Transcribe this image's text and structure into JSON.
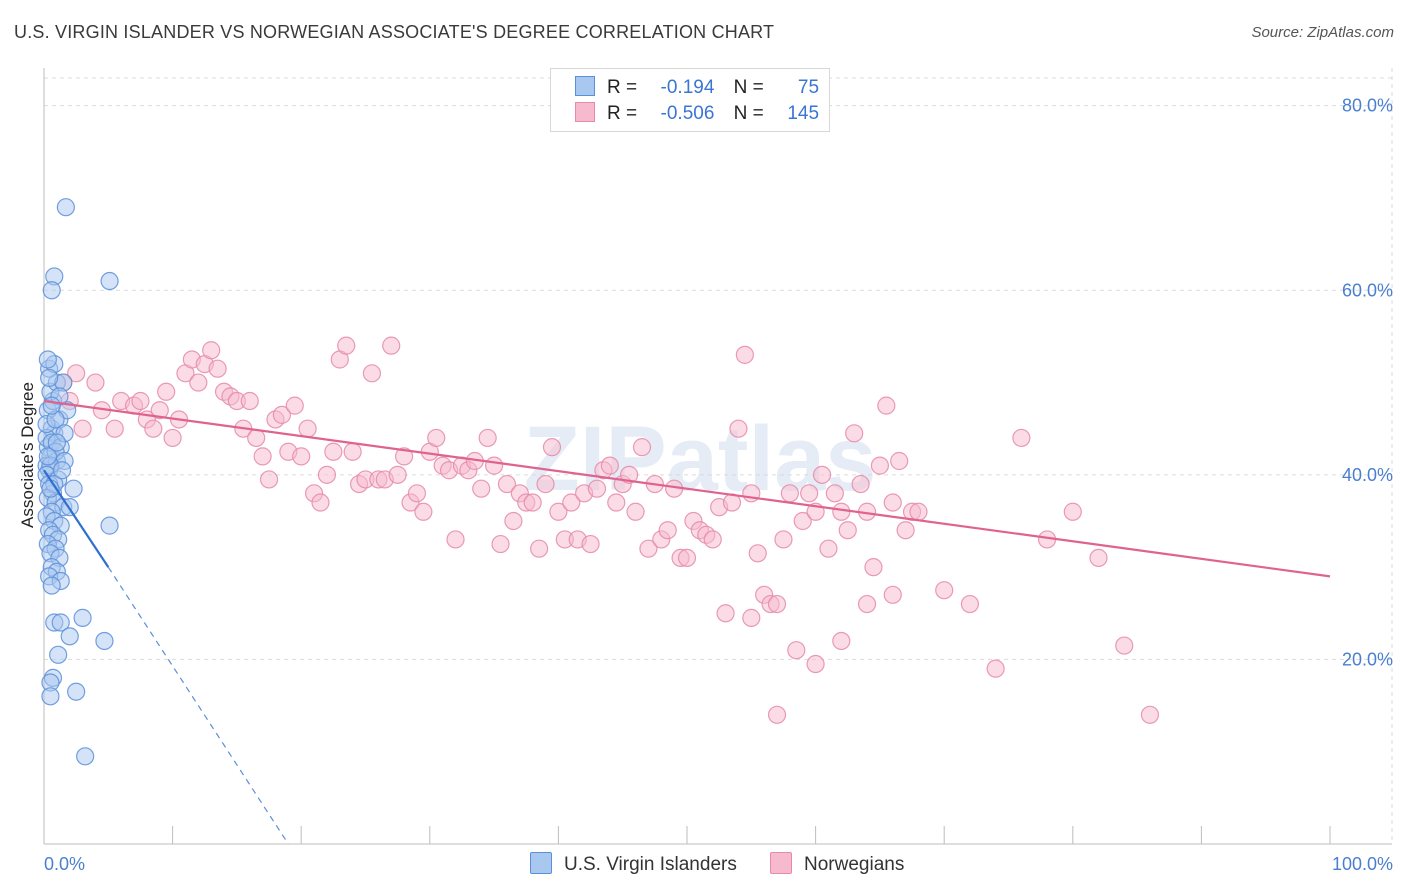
{
  "title": "U.S. VIRGIN ISLANDER VS NORWEGIAN ASSOCIATE'S DEGREE CORRELATION CHART",
  "source": "Source: ZipAtlas.com",
  "watermark": "ZIPatlas",
  "legend": {
    "r_label": "R =",
    "n_label": "N =",
    "rows": [
      {
        "name": "U.S. Virgin Islanders",
        "r": "-0.194",
        "n": "75",
        "color": "#a9c8f0",
        "stroke": "#5b8fd8"
      },
      {
        "name": "Norwegians",
        "r": "-0.506",
        "n": "145",
        "color": "#f7b9cd",
        "stroke": "#e58aa8"
      }
    ]
  },
  "chart_data": {
    "type": "scatter",
    "title": "U.S. VIRGIN ISLANDER VS NORWEGIAN ASSOCIATE'S DEGREE CORRELATION CHART",
    "xlabel": "",
    "ylabel": "Associate's Degree",
    "xlim": [
      0,
      100
    ],
    "ylim": [
      0,
      83
    ],
    "x_tick_labels": [
      "0.0%",
      "100.0%"
    ],
    "y_ticks": [
      20,
      40,
      60,
      80
    ],
    "y_tick_labels": [
      "20.0%",
      "40.0%",
      "60.0%",
      "80.0%"
    ],
    "grid": true,
    "legend_position": "top-center",
    "series": [
      {
        "name": "U.S. Virgin Islanders",
        "color": "#a9c8f0",
        "stroke": "#5b8fd8",
        "trend": {
          "x": [
            0,
            5
          ],
          "y": [
            40.5,
            30.0
          ],
          "dashed_extension_to": [
            19,
            0
          ]
        },
        "points": [
          [
            0.3,
            43
          ],
          [
            0.5,
            42
          ],
          [
            0.8,
            44.5
          ],
          [
            0.4,
            40.5
          ],
          [
            0.2,
            41
          ],
          [
            1.0,
            41.5
          ],
          [
            0.6,
            45
          ],
          [
            1.2,
            46
          ],
          [
            0.3,
            47
          ],
          [
            0.7,
            48
          ],
          [
            0.5,
            49
          ],
          [
            1.0,
            50
          ],
          [
            0.4,
            51.5
          ],
          [
            0.8,
            52
          ],
          [
            0.3,
            52.5
          ],
          [
            1.5,
            50
          ],
          [
            1.8,
            47
          ],
          [
            0.2,
            44
          ],
          [
            0.6,
            43.5
          ],
          [
            1.3,
            43
          ],
          [
            0.9,
            42.5
          ],
          [
            1.6,
            41.5
          ],
          [
            0.5,
            41
          ],
          [
            0.2,
            40
          ],
          [
            1.1,
            39.5
          ],
          [
            0.4,
            39
          ],
          [
            0.7,
            38
          ],
          [
            2.3,
            38.5
          ],
          [
            0.3,
            37.5
          ],
          [
            0.9,
            37
          ],
          [
            1.5,
            36.5
          ],
          [
            2.0,
            36.5
          ],
          [
            0.6,
            36
          ],
          [
            0.2,
            35.5
          ],
          [
            0.8,
            35
          ],
          [
            1.3,
            34.5
          ],
          [
            0.4,
            34
          ],
          [
            0.7,
            33.5
          ],
          [
            1.1,
            33
          ],
          [
            0.3,
            32.5
          ],
          [
            0.9,
            32
          ],
          [
            0.5,
            31.5
          ],
          [
            1.2,
            31
          ],
          [
            0.6,
            30
          ],
          [
            1.0,
            29.5
          ],
          [
            0.4,
            29
          ],
          [
            1.3,
            28.5
          ],
          [
            0.6,
            28
          ],
          [
            0.8,
            61.5
          ],
          [
            0.6,
            60
          ],
          [
            1.7,
            69
          ],
          [
            5.1,
            61
          ],
          [
            5.1,
            34.5
          ],
          [
            0.8,
            24
          ],
          [
            1.3,
            24
          ],
          [
            3.0,
            24.5
          ],
          [
            2.0,
            22.5
          ],
          [
            4.7,
            22
          ],
          [
            1.1,
            20.5
          ],
          [
            0.7,
            18
          ],
          [
            0.5,
            17.5
          ],
          [
            2.5,
            16.5
          ],
          [
            0.5,
            16
          ],
          [
            3.2,
            9.5
          ],
          [
            0.2,
            45.5
          ],
          [
            0.9,
            46
          ],
          [
            1.2,
            48.5
          ],
          [
            0.4,
            50.5
          ],
          [
            1.6,
            44.5
          ],
          [
            0.8,
            39
          ],
          [
            1.4,
            40.5
          ],
          [
            0.3,
            42
          ],
          [
            1.0,
            43.5
          ],
          [
            0.6,
            47.5
          ],
          [
            0.5,
            38.5
          ]
        ]
      },
      {
        "name": "Norwegians",
        "color": "#f7b9cd",
        "stroke": "#e58aa8",
        "trend": {
          "x": [
            0,
            100
          ],
          "y": [
            48.0,
            29.0
          ]
        },
        "points": [
          [
            2,
            48
          ],
          [
            2.5,
            51
          ],
          [
            1.5,
            50
          ],
          [
            4,
            50
          ],
          [
            3,
            45
          ],
          [
            4.5,
            47
          ],
          [
            5.5,
            45
          ],
          [
            6,
            48
          ],
          [
            7,
            47.5
          ],
          [
            7.5,
            48
          ],
          [
            8,
            46
          ],
          [
            8.5,
            45
          ],
          [
            9,
            47
          ],
          [
            9.5,
            49
          ],
          [
            10,
            44
          ],
          [
            10.5,
            46
          ],
          [
            11,
            51
          ],
          [
            11.5,
            52.5
          ],
          [
            12,
            50
          ],
          [
            12.5,
            52
          ],
          [
            13,
            53.5
          ],
          [
            13.5,
            51.5
          ],
          [
            14,
            49
          ],
          [
            14.5,
            48.5
          ],
          [
            15,
            48
          ],
          [
            15.5,
            45
          ],
          [
            16,
            48
          ],
          [
            16.5,
            44
          ],
          [
            17,
            42
          ],
          [
            17.5,
            39.5
          ],
          [
            18,
            46
          ],
          [
            18.5,
            46.5
          ],
          [
            19,
            42.5
          ],
          [
            19.5,
            47.5
          ],
          [
            20,
            42
          ],
          [
            20.5,
            45
          ],
          [
            21,
            38
          ],
          [
            21.5,
            37
          ],
          [
            22,
            40
          ],
          [
            22.5,
            42.5
          ],
          [
            23,
            52.5
          ],
          [
            23.5,
            54
          ],
          [
            24,
            42.5
          ],
          [
            24.5,
            39
          ],
          [
            25,
            39.5
          ],
          [
            25.5,
            51
          ],
          [
            26,
            39.5
          ],
          [
            26.5,
            39.5
          ],
          [
            27,
            54
          ],
          [
            27.5,
            40
          ],
          [
            28,
            42
          ],
          [
            28.5,
            37
          ],
          [
            29,
            38
          ],
          [
            29.5,
            36
          ],
          [
            30,
            42.5
          ],
          [
            30.5,
            44
          ],
          [
            31,
            41
          ],
          [
            31.5,
            40.5
          ],
          [
            32,
            33
          ],
          [
            32.5,
            41
          ],
          [
            33,
            40.5
          ],
          [
            33.5,
            41.5
          ],
          [
            34,
            38.5
          ],
          [
            34.5,
            44
          ],
          [
            35,
            41
          ],
          [
            35.5,
            32.5
          ],
          [
            36,
            39
          ],
          [
            36.5,
            35
          ],
          [
            37,
            38
          ],
          [
            37.5,
            37
          ],
          [
            38,
            37
          ],
          [
            38.5,
            32
          ],
          [
            39,
            39
          ],
          [
            39.5,
            43
          ],
          [
            40,
            36
          ],
          [
            40.5,
            33
          ],
          [
            41,
            37
          ],
          [
            41.5,
            33
          ],
          [
            42,
            38
          ],
          [
            42.5,
            32.5
          ],
          [
            43,
            38.5
          ],
          [
            43.5,
            40.5
          ],
          [
            44,
            41
          ],
          [
            44.5,
            37
          ],
          [
            45,
            39
          ],
          [
            45.5,
            40
          ],
          [
            46,
            36
          ],
          [
            46.5,
            43
          ],
          [
            47,
            32
          ],
          [
            47.5,
            39
          ],
          [
            48,
            33
          ],
          [
            48.5,
            34
          ],
          [
            49,
            38.5
          ],
          [
            49.5,
            31
          ],
          [
            50,
            31
          ],
          [
            50.5,
            35
          ],
          [
            51,
            34
          ],
          [
            51.5,
            33.5
          ],
          [
            52,
            33
          ],
          [
            52.5,
            36.5
          ],
          [
            53,
            25
          ],
          [
            53.5,
            37
          ],
          [
            54,
            45
          ],
          [
            54.5,
            53
          ],
          [
            55,
            38
          ],
          [
            55.5,
            31.5
          ],
          [
            56,
            27
          ],
          [
            56.5,
            26
          ],
          [
            57,
            26
          ],
          [
            57.5,
            33
          ],
          [
            58,
            38
          ],
          [
            58.5,
            21
          ],
          [
            59,
            35
          ],
          [
            59.5,
            38
          ],
          [
            60,
            36
          ],
          [
            60.5,
            40
          ],
          [
            61,
            32
          ],
          [
            61.5,
            38
          ],
          [
            62,
            36
          ],
          [
            62.5,
            34
          ],
          [
            63,
            44.5
          ],
          [
            63.5,
            39
          ],
          [
            64,
            36
          ],
          [
            64.5,
            30
          ],
          [
            65,
            41
          ],
          [
            65.5,
            47.5
          ],
          [
            66,
            37
          ],
          [
            66.5,
            41.5
          ],
          [
            67,
            34
          ],
          [
            67.5,
            36
          ],
          [
            55,
            24.5
          ],
          [
            57,
            14
          ],
          [
            60,
            19.5
          ],
          [
            62,
            22
          ],
          [
            64,
            26
          ],
          [
            66,
            27
          ],
          [
            68,
            36
          ],
          [
            70,
            27.5
          ],
          [
            72,
            26
          ],
          [
            74,
            19
          ],
          [
            76,
            44
          ],
          [
            78,
            33
          ],
          [
            80,
            36
          ],
          [
            82,
            31
          ],
          [
            84,
            21.5
          ],
          [
            86,
            14
          ]
        ]
      }
    ]
  }
}
